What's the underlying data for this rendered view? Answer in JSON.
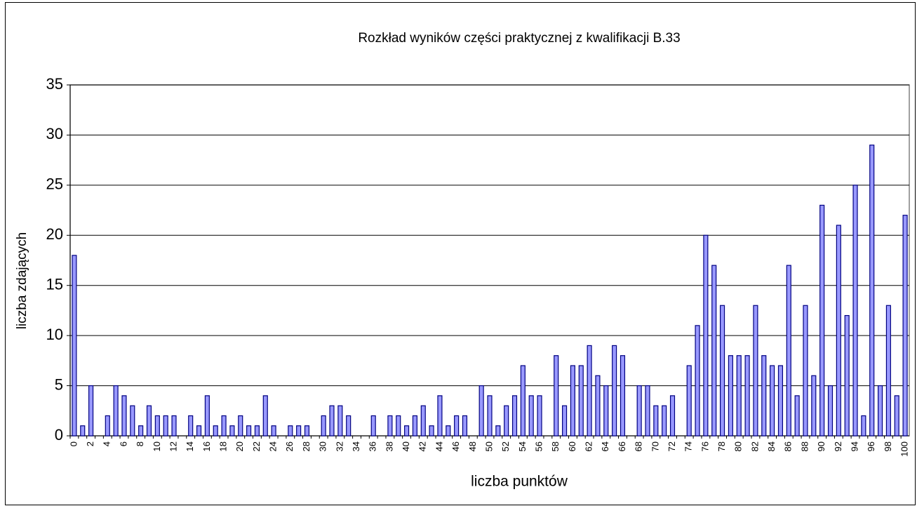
{
  "chart_data": {
    "type": "bar",
    "title": "Rozkład wyników części praktycznej z kwalifikacji B.33",
    "x_label": "liczba punktów",
    "y_label": "liczba zdających",
    "categories": [
      "0",
      null,
      "2",
      null,
      "4",
      null,
      "6",
      null,
      "8",
      null,
      "10",
      null,
      "12",
      null,
      "14",
      null,
      "16",
      null,
      "18",
      null,
      "20",
      null,
      "22",
      null,
      "24",
      null,
      "26",
      null,
      "28",
      null,
      "30",
      null,
      "32",
      null,
      "34",
      null,
      "36",
      null,
      "38",
      null,
      "40",
      null,
      "42",
      null,
      "44",
      null,
      "46",
      null,
      "48",
      null,
      "50",
      null,
      "52",
      null,
      "54",
      null,
      "56",
      null,
      "58",
      null,
      "60",
      null,
      "62",
      null,
      "64",
      null,
      "66",
      null,
      "68",
      null,
      "70",
      null,
      "72",
      null,
      "74",
      null,
      "76",
      null,
      "78",
      null,
      "80",
      null,
      "82",
      null,
      "84",
      null,
      "86",
      null,
      "88",
      null,
      "90",
      null,
      "92",
      null,
      "94",
      null,
      "96",
      null,
      "98",
      null,
      "100"
    ],
    "values": [
      18,
      1,
      5,
      0,
      2,
      5,
      4,
      3,
      1,
      3,
      2,
      2,
      2,
      0,
      2,
      1,
      4,
      1,
      2,
      1,
      2,
      1,
      1,
      4,
      1,
      0,
      1,
      1,
      1,
      0,
      2,
      3,
      3,
      2,
      0,
      0,
      2,
      0,
      2,
      2,
      1,
      2,
      3,
      1,
      4,
      1,
      2,
      2,
      0,
      5,
      4,
      1,
      3,
      4,
      7,
      4,
      4,
      0,
      8,
      3,
      7,
      7,
      9,
      6,
      5,
      9,
      8,
      0,
      5,
      5,
      3,
      3,
      4,
      0,
      7,
      11,
      20,
      17,
      13,
      8,
      8,
      8,
      13,
      8,
      7,
      7,
      17,
      4,
      13,
      6,
      23,
      5,
      21,
      12,
      25,
      2,
      29,
      5,
      13,
      4,
      22
    ],
    "color": "#9999ff",
    "ylim": [
      0,
      35
    ],
    "yticks": [
      0,
      5,
      10,
      15,
      20,
      25,
      30,
      35
    ],
    "grid": true
  }
}
